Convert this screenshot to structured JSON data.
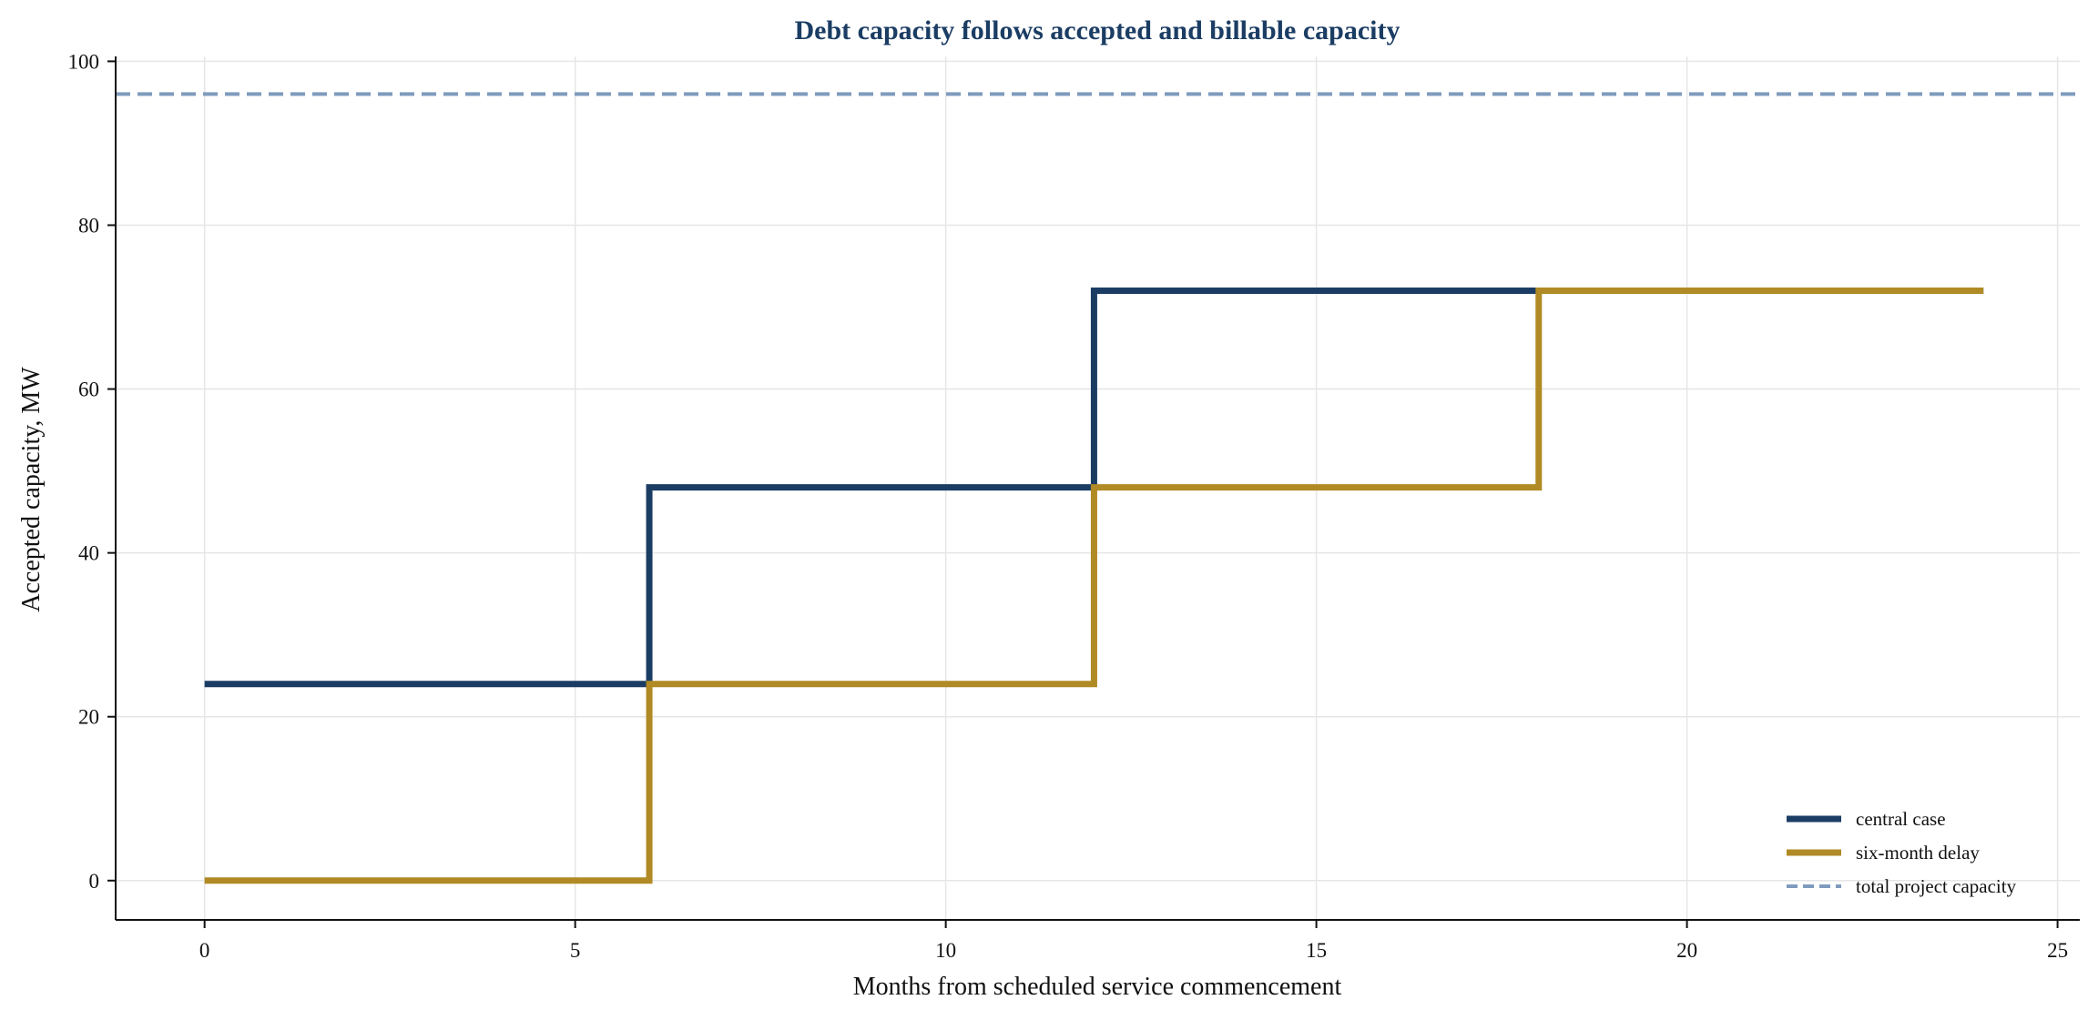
{
  "chart_data": {
    "type": "line",
    "title": "Debt capacity follows accepted and billable capacity",
    "xlabel": "Months from scheduled service commencement",
    "ylabel": "Accepted capacity, MW",
    "xlim": [
      -1.2,
      25.3
    ],
    "ylim": [
      -4.8,
      100.6
    ],
    "xticks": [
      0,
      5,
      10,
      15,
      20,
      25
    ],
    "yticks": [
      0,
      20,
      40,
      60,
      80,
      100
    ],
    "grid": true,
    "legend_position": "bottom-right",
    "series": [
      {
        "name": "central case",
        "color": "#1b3d64",
        "style": "step-post",
        "x": [
          0,
          6,
          12,
          18,
          24
        ],
        "y": [
          24,
          48,
          72,
          72,
          72
        ]
      },
      {
        "name": "six-month delay",
        "color": "#b08a24",
        "style": "step-post",
        "x": [
          0,
          6,
          12,
          18,
          24
        ],
        "y": [
          0,
          24,
          48,
          72,
          72
        ]
      }
    ],
    "reference_lines": [
      {
        "name": "total project capacity",
        "y": 96,
        "color": "#7f9bbd",
        "style": "dashed"
      }
    ],
    "title_color": "#1b3d64"
  }
}
